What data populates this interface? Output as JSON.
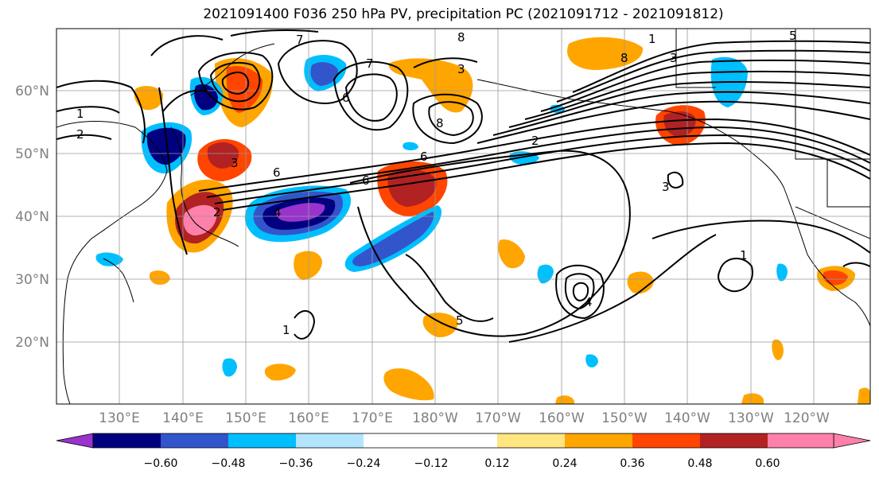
{
  "title": "2021091400 F036 250 hPa PV, precipitation PC (2021091712 - 2021091812)",
  "lat_labels": [
    "60°N",
    "50°N",
    "40°N",
    "30°N",
    "20°N"
  ],
  "lon_labels": [
    "130°E",
    "140°E",
    "150°E",
    "160°E",
    "170°E",
    "180°W",
    "170°W",
    "160°W",
    "150°W",
    "140°W",
    "130°W",
    "120°W"
  ],
  "contour_labels": [
    "1",
    "2",
    "7",
    "7",
    "8",
    "5",
    "3",
    "6",
    "6",
    "8",
    "2",
    "6",
    "8",
    "3",
    "6",
    "3",
    "4",
    "2",
    "1",
    "4",
    "1",
    "1",
    "5",
    "3"
  ],
  "colorbar": {
    "colors": [
      "#9933cc",
      "#000080",
      "#3355cc",
      "#00bfff",
      "#b3e5ff",
      "#ffffff",
      "#ffe680",
      "#ffa500",
      "#ff4500",
      "#b22222",
      "#ff80aa"
    ],
    "tick_labels": [
      "−0.60",
      "−0.48",
      "−0.36",
      "−0.24",
      "−0.12",
      "0.12",
      "0.24",
      "0.36",
      "0.48",
      "0.60"
    ]
  }
}
